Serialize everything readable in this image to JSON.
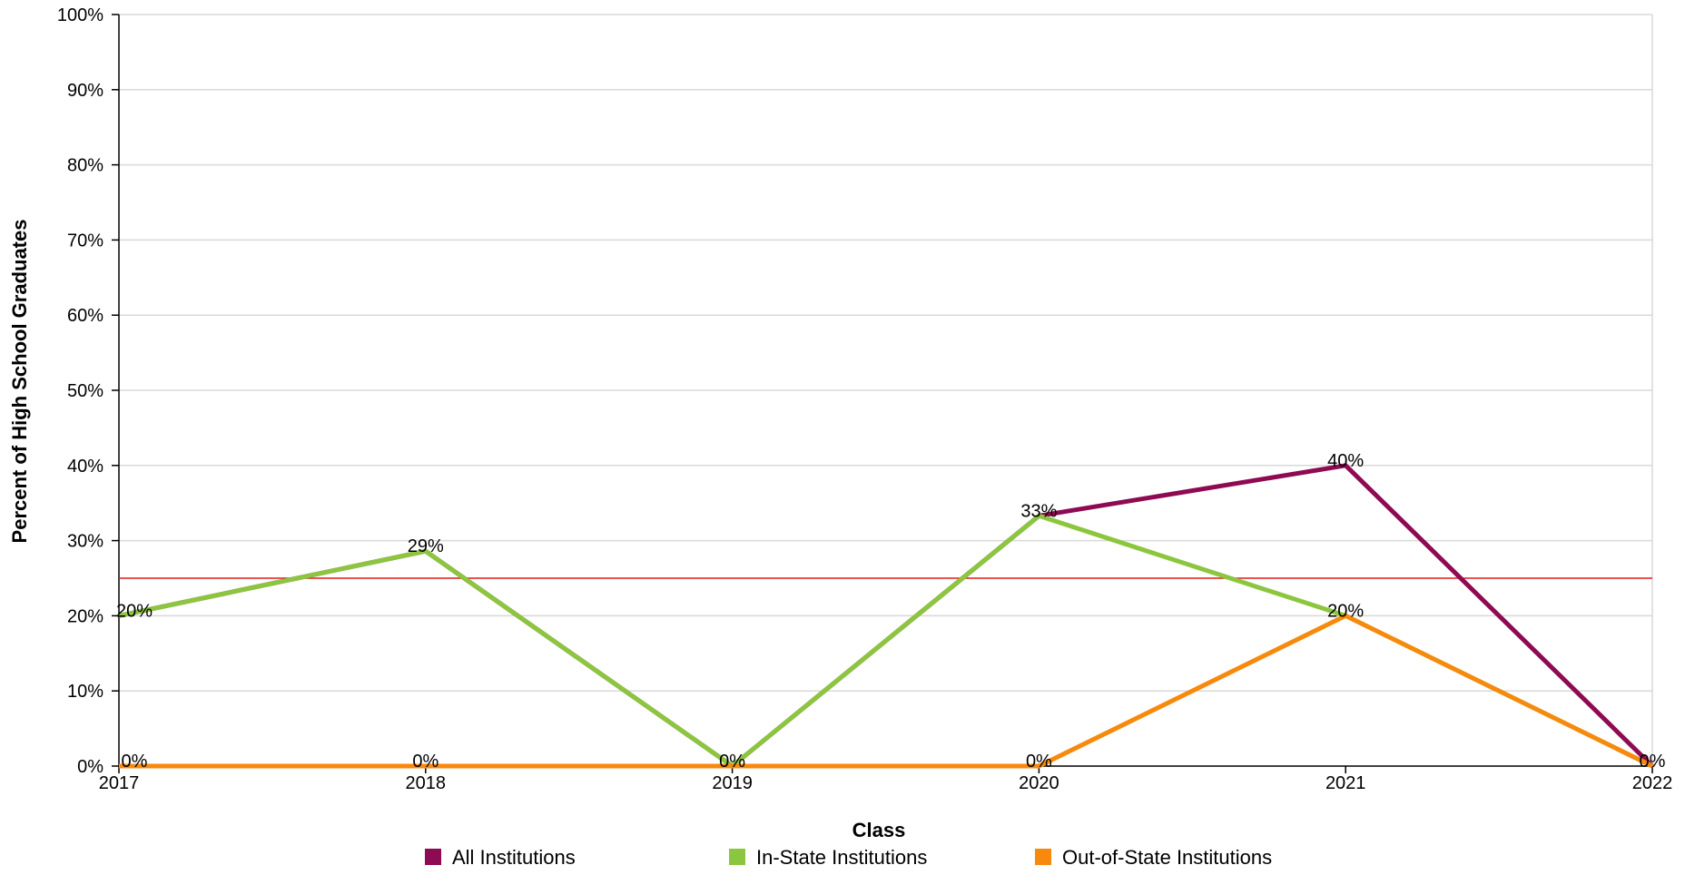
{
  "chart_data": {
    "type": "line",
    "title": "",
    "xlabel": "Class",
    "ylabel": "Percent of High School Graduates",
    "x": [
      "2017",
      "2018",
      "2019",
      "2020",
      "2021",
      "2022"
    ],
    "ylim": [
      0,
      100
    ],
    "yticks": [
      "0%",
      "10%",
      "20%",
      "30%",
      "40%",
      "50%",
      "60%",
      "70%",
      "80%",
      "90%",
      "100%"
    ],
    "y_tick_values": [
      0,
      10,
      20,
      30,
      40,
      50,
      60,
      70,
      80,
      90,
      100
    ],
    "grid": true,
    "reference_line": {
      "value": 25,
      "color": "#e31a1c"
    },
    "legend_position": "bottom",
    "series": [
      {
        "name": "All Institutions",
        "color": "#8e0a52",
        "values": [
          20,
          28.6,
          0,
          33.3,
          40,
          0
        ],
        "labels": [
          "",
          "",
          "",
          "",
          "40%",
          ""
        ]
      },
      {
        "name": "In-State Institutions",
        "color": "#8cc63f",
        "values": [
          20,
          28.6,
          0,
          33.3,
          20,
          0
        ],
        "labels": [
          "20%",
          "29%",
          "",
          "33%",
          "",
          ""
        ]
      },
      {
        "name": "Out-of-State Institutions",
        "color": "#f7890c",
        "values": [
          0,
          0,
          0,
          0,
          20,
          0
        ],
        "labels": [
          "0%",
          "0%",
          "0%",
          "0%",
          "20%",
          "0%"
        ]
      }
    ]
  }
}
